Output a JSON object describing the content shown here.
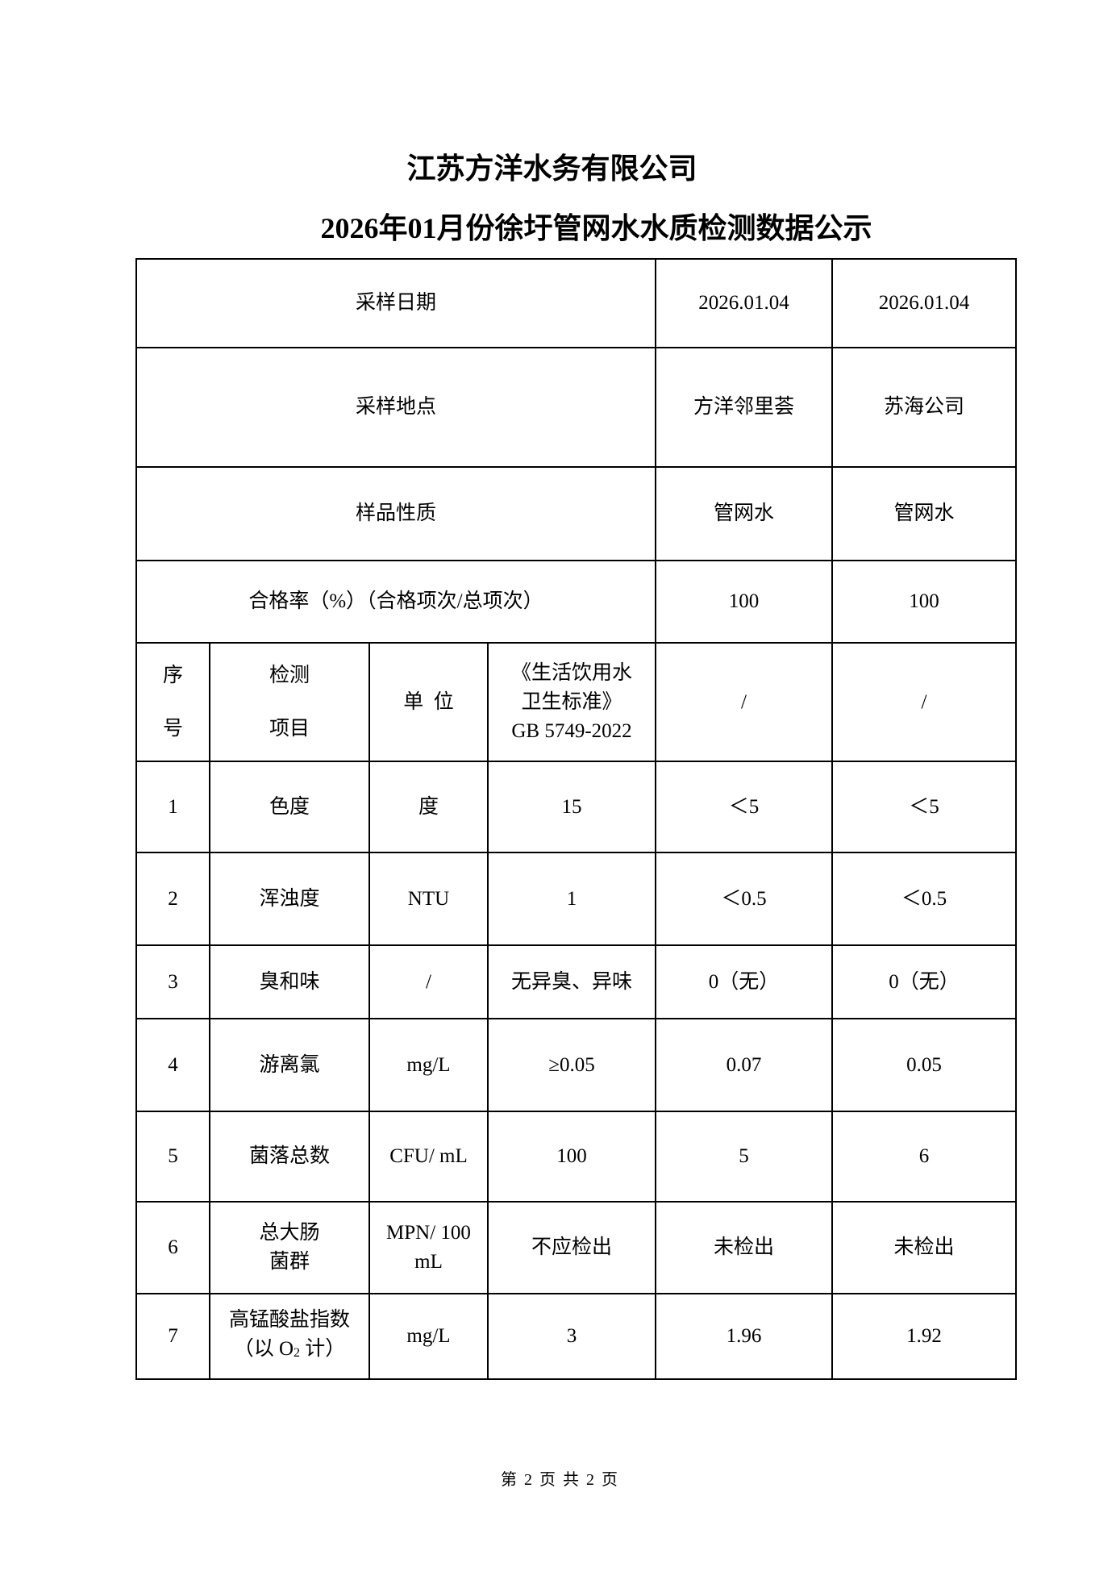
{
  "header": {
    "company": "江苏方洋水务有限公司",
    "title": "2026年01月份徐圩管网水水质检测数据公示"
  },
  "info_rows": [
    {
      "label": "采样日期",
      "values": [
        "2026.01.04",
        "2026.01.04"
      ]
    },
    {
      "label": "采样地点",
      "values": [
        "方洋邻里荟",
        "苏海公司"
      ]
    },
    {
      "label": "样品性质",
      "values": [
        "管网水",
        "管网水"
      ]
    },
    {
      "label": "合格率（%）（合格项次/总项次）",
      "values": [
        "100",
        "100"
      ]
    }
  ],
  "columns": {
    "no_1": "序",
    "no_2": "号",
    "item_1": "检测",
    "item_2": "项目",
    "unit": "单  位",
    "standard_1": "《生活饮用水",
    "standard_2": "卫生标准》",
    "standard_3": "GB 5749-2022",
    "s1": "/",
    "s2": "/"
  },
  "rows": [
    {
      "no": "1",
      "item": "色度",
      "unit": "度",
      "limit": "15",
      "v1": "＜5",
      "v2": "＜5"
    },
    {
      "no": "2",
      "item": "浑浊度",
      "unit": "NTU",
      "limit": "1",
      "v1": "＜0.5",
      "v2": "＜0.5"
    },
    {
      "no": "3",
      "item": "臭和味",
      "unit": "/",
      "limit": "无异臭、异味",
      "v1": "0（无）",
      "v2": "0（无）"
    },
    {
      "no": "4",
      "item": "游离氯",
      "unit": "mg/L",
      "limit": "≥0.05",
      "v1": "0.07",
      "v2": "0.05"
    },
    {
      "no": "5",
      "item": "菌落总数",
      "unit": "CFU/ mL",
      "limit": "100",
      "v1": "5",
      "v2": "6"
    },
    {
      "no": "6",
      "item": "总大肠",
      "item_2": "菌群",
      "unit": "MPN/ 100",
      "unit_2": "mL",
      "limit": "不应检出",
      "v1": "未检出",
      "v2": "未检出"
    },
    {
      "no": "7",
      "item": "高锰酸盐指数",
      "item_2a": "（以 O",
      "item_2sub": "2",
      "item_2b": " 计）",
      "unit": "mg/L",
      "limit": "3",
      "v1": "1.96",
      "v2": "1.92"
    }
  ],
  "footer": "第 2 页 共 2 页"
}
